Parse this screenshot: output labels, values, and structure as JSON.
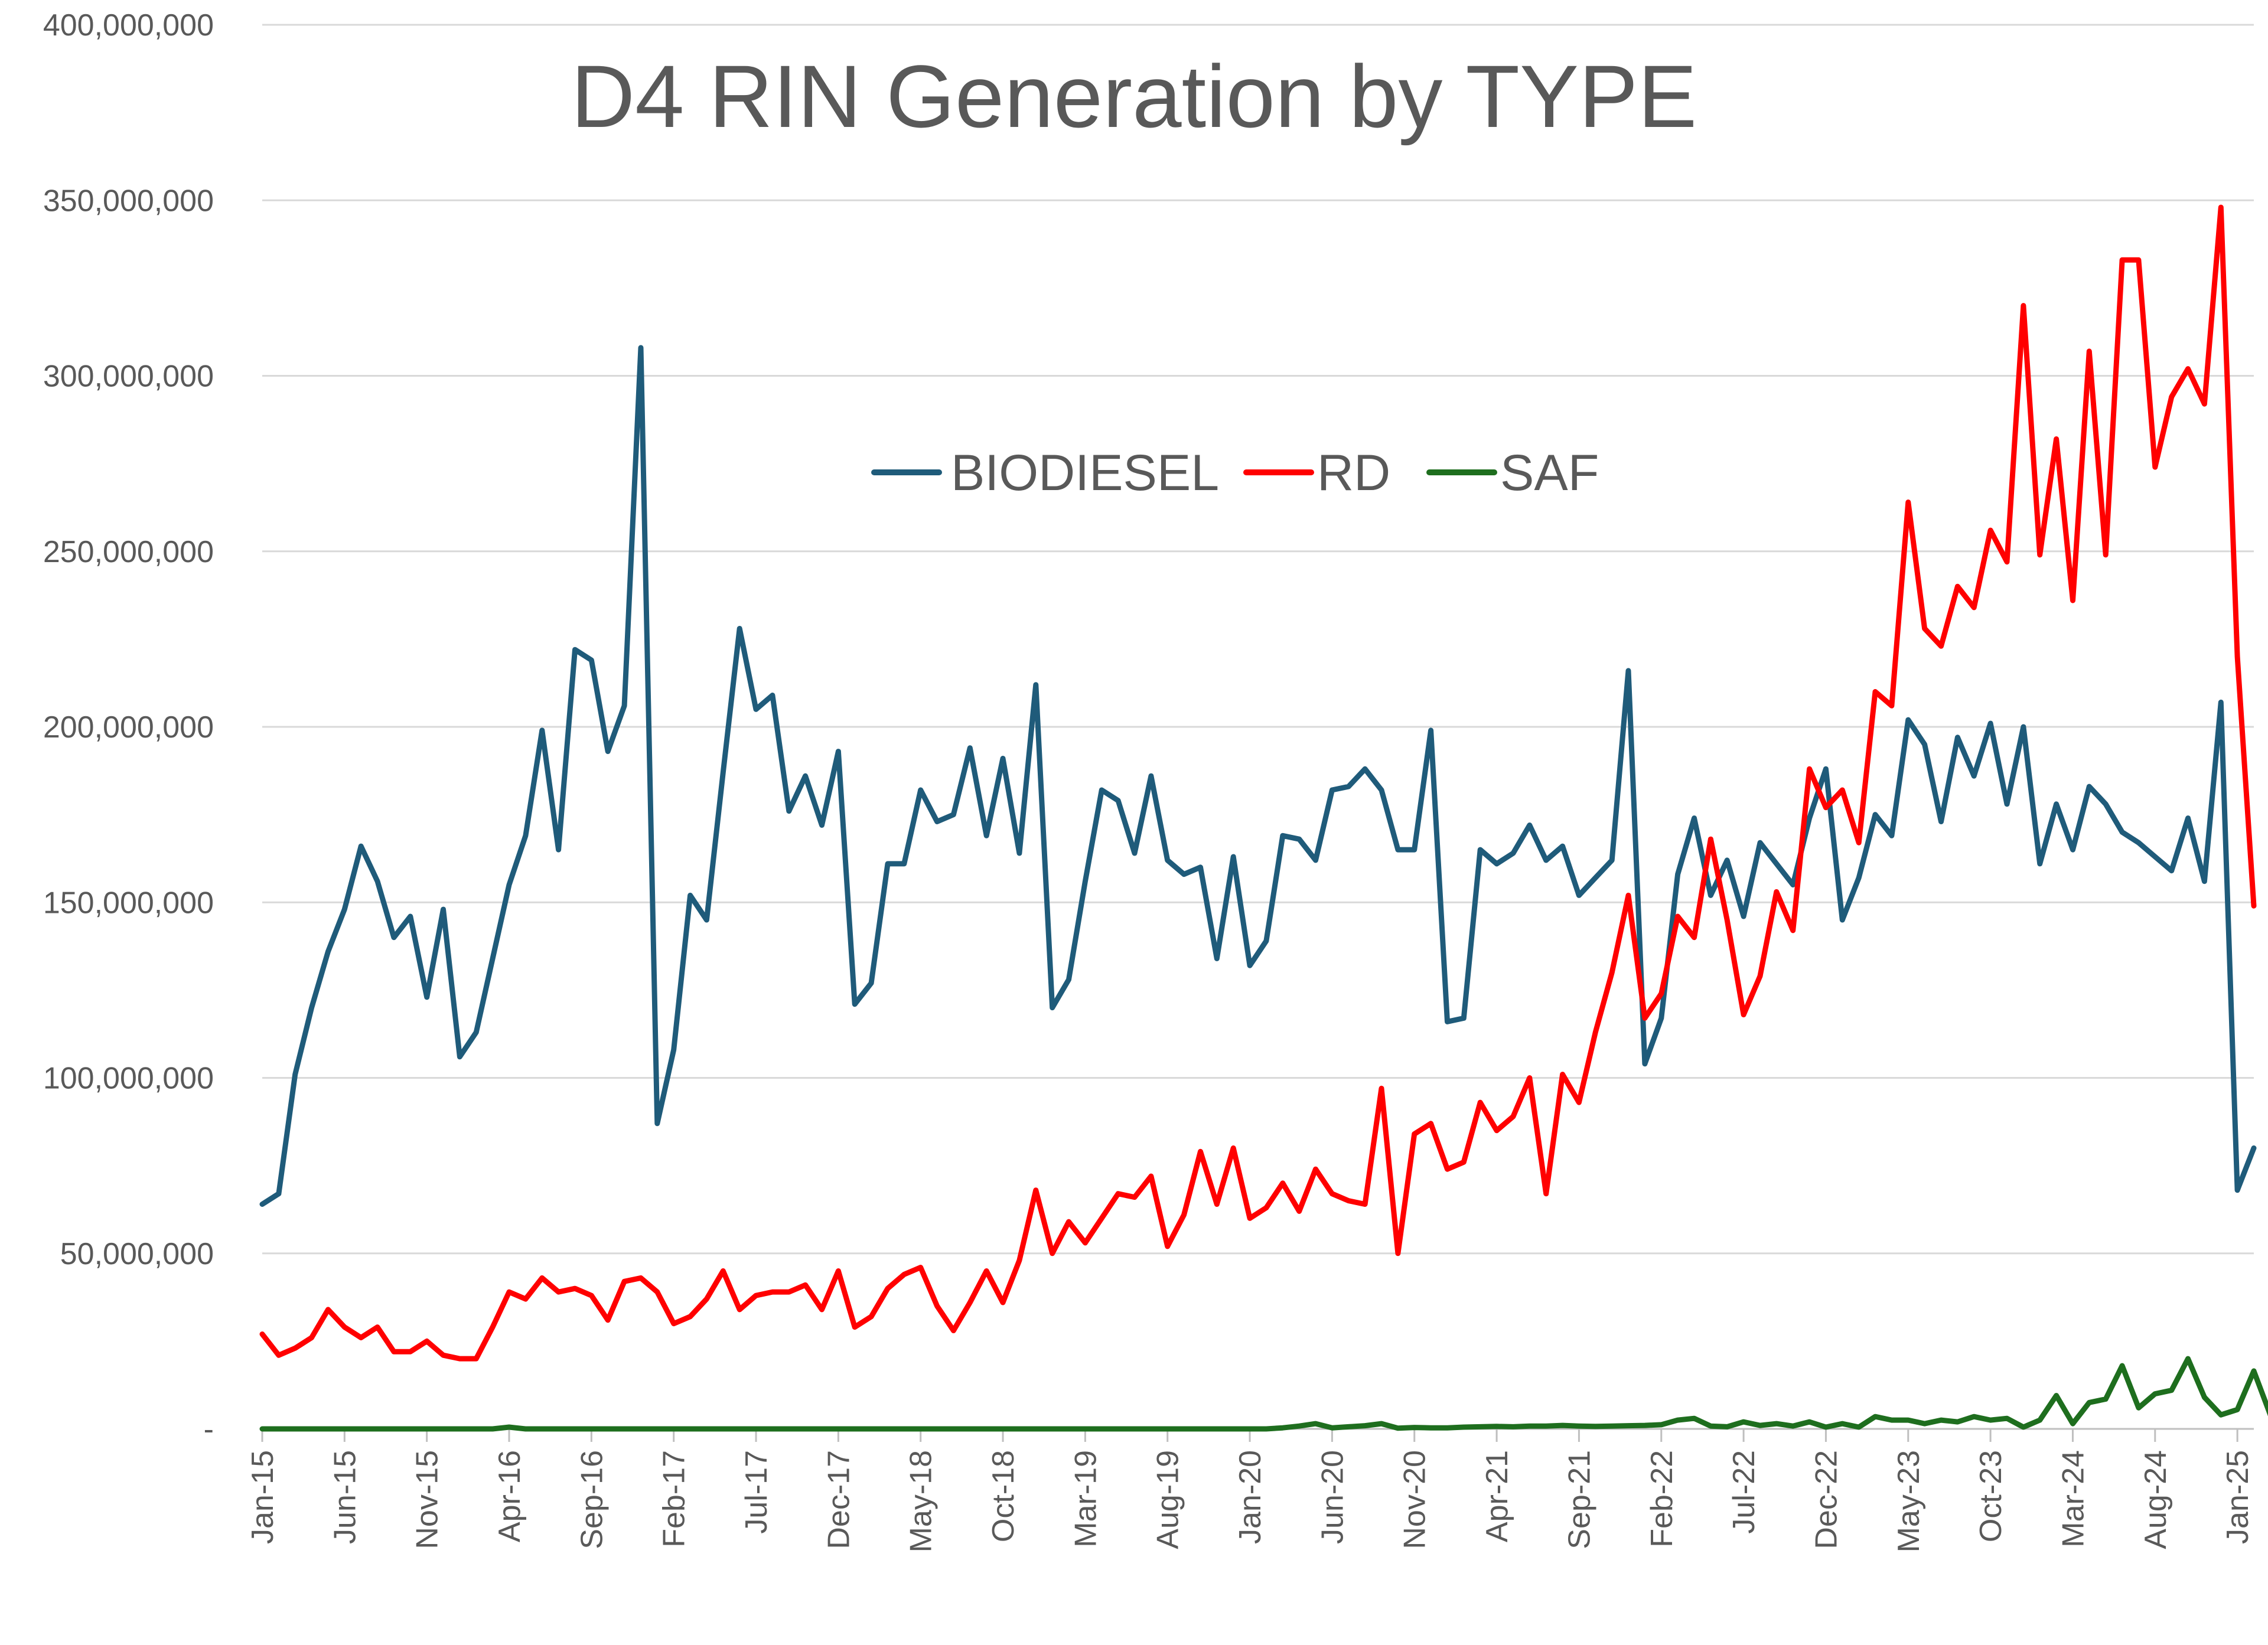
{
  "chart_data": {
    "type": "line",
    "title": "D4 RIN Generation by TYPE",
    "xlabel": "",
    "ylabel": "",
    "ylim": [
      0,
      400000000
    ],
    "yticks": [
      {
        "value": 0,
        "label": "-"
      },
      {
        "value": 50000000,
        "label": "50,000,000"
      },
      {
        "value": 100000000,
        "label": "100,000,000"
      },
      {
        "value": 150000000,
        "label": "150,000,000"
      },
      {
        "value": 200000000,
        "label": "200,000,000"
      },
      {
        "value": 250000000,
        "label": "250,000,000"
      },
      {
        "value": 300000000,
        "label": "300,000,000"
      },
      {
        "value": 350000000,
        "label": "350,000,000"
      },
      {
        "value": 400000000,
        "label": "400,000,000"
      }
    ],
    "xtick_labels": [
      {
        "index": 0,
        "label": "Jan-15"
      },
      {
        "index": 5,
        "label": "Jun-15"
      },
      {
        "index": 10,
        "label": "Nov-15"
      },
      {
        "index": 15,
        "label": "Apr-16"
      },
      {
        "index": 20,
        "label": "Sep-16"
      },
      {
        "index": 25,
        "label": "Feb-17"
      },
      {
        "index": 30,
        "label": "Jul-17"
      },
      {
        "index": 35,
        "label": "Dec-17"
      },
      {
        "index": 40,
        "label": "May-18"
      },
      {
        "index": 45,
        "label": "Oct-18"
      },
      {
        "index": 50,
        "label": "Mar-19"
      },
      {
        "index": 55,
        "label": "Aug-19"
      },
      {
        "index": 60,
        "label": "Jan-20"
      },
      {
        "index": 65,
        "label": "Jun-20"
      },
      {
        "index": 70,
        "label": "Nov-20"
      },
      {
        "index": 75,
        "label": "Apr-21"
      },
      {
        "index": 80,
        "label": "Sep-21"
      },
      {
        "index": 85,
        "label": "Feb-22"
      },
      {
        "index": 90,
        "label": "Jul-22"
      },
      {
        "index": 95,
        "label": "Dec-22"
      },
      {
        "index": 100,
        "label": "May-23"
      },
      {
        "index": 105,
        "label": "Oct-23"
      },
      {
        "index": 110,
        "label": "Mar-24"
      },
      {
        "index": 115,
        "label": "Aug-24"
      },
      {
        "index": 120,
        "label": "Jan-25"
      }
    ],
    "legend": {
      "placement": "top-center"
    },
    "series": [
      {
        "name": "BIODIESEL",
        "color": "#1f5b7a",
        "values": [
          64,
          67,
          101,
          120,
          136,
          148,
          166,
          156,
          140,
          146,
          123,
          148,
          106,
          113,
          134,
          155,
          169,
          199,
          165,
          222,
          219,
          193,
          206,
          308,
          87,
          108,
          152,
          145,
          187,
          228,
          205,
          209,
          176,
          186,
          172,
          193,
          121,
          127,
          161,
          161,
          182,
          173,
          175,
          194,
          169,
          191,
          164,
          212,
          120,
          128,
          156,
          182,
          179,
          164,
          186,
          162,
          158,
          160,
          134,
          163,
          132,
          139,
          169,
          168,
          162,
          182,
          183,
          188,
          182,
          165,
          165,
          199,
          116,
          117,
          165,
          161,
          164,
          172,
          162,
          166,
          152,
          157,
          162,
          216,
          104,
          117,
          158,
          174,
          152,
          162,
          146,
          167,
          161,
          155,
          174,
          188,
          145,
          157,
          175,
          169,
          202,
          195,
          173,
          197,
          186,
          201,
          178,
          200,
          161,
          178,
          165,
          183,
          178,
          170,
          167,
          163,
          159,
          174,
          156,
          207,
          68,
          80
        ]
      },
      {
        "name": "RD",
        "color": "#ff0000",
        "values": [
          27,
          21,
          23,
          26,
          34,
          29,
          26,
          29,
          22,
          22,
          25,
          21,
          20,
          20,
          29,
          39,
          37,
          43,
          39,
          40,
          38,
          31,
          42,
          43,
          39,
          30,
          32,
          37,
          45,
          34,
          38,
          39,
          39,
          41,
          34,
          45,
          29,
          32,
          40,
          44,
          46,
          35,
          28,
          36,
          45,
          36,
          48,
          68,
          50,
          59,
          53,
          60,
          67,
          66,
          72,
          52,
          61,
          79,
          64,
          80,
          60,
          63,
          70,
          62,
          74,
          67,
          65,
          64,
          97,
          50,
          84,
          87,
          74,
          76,
          93,
          85,
          89,
          100,
          67,
          101,
          93,
          113,
          130,
          152,
          117,
          124,
          146,
          140,
          168,
          145,
          118,
          129,
          153,
          142,
          188,
          177,
          182,
          167,
          210,
          206,
          264,
          228,
          223,
          240,
          234,
          256,
          247,
          320,
          249,
          282,
          236,
          307,
          249,
          333,
          333,
          274,
          294,
          302,
          292,
          348,
          220,
          149
        ]
      },
      {
        "name": "SAF",
        "color": "#1e6e1e",
        "values": [
          0,
          0,
          0,
          0,
          0,
          0,
          0,
          0,
          0,
          0,
          0,
          0,
          0,
          0,
          0,
          0.5,
          0,
          0,
          0,
          0,
          0,
          0,
          0,
          0,
          0,
          0,
          0,
          0,
          0,
          0,
          0,
          0,
          0,
          0,
          0,
          0,
          0,
          0,
          0,
          0,
          0,
          0,
          0,
          0,
          0,
          0,
          0,
          0,
          0,
          0,
          0,
          0,
          0,
          0,
          0,
          0,
          0,
          0,
          0,
          0,
          0,
          0,
          0.3,
          0.8,
          1.5,
          0.3,
          0.6,
          0.9,
          1.5,
          0.2,
          0.4,
          0.3,
          0.3,
          0.5,
          0.6,
          0.7,
          0.6,
          0.8,
          0.8,
          1.0,
          0.8,
          0.7,
          0.8,
          0.9,
          1.0,
          1.2,
          2.5,
          3.0,
          0.8,
          0.6,
          2.0,
          1.0,
          1.5,
          0.8,
          2.0,
          0.5,
          1.5,
          0.5,
          3.5,
          2.5,
          2.5,
          1.5,
          2.5,
          2.0,
          3.5,
          2.5,
          3.0,
          0.5,
          2.5,
          9.5,
          1.5,
          7.5,
          8.5,
          18,
          6,
          10,
          11,
          20,
          9,
          4,
          5.5,
          16.5,
          4
        ]
      }
    ],
    "value_unit": "millions of RINs (plotted value x 1,000,000)"
  }
}
